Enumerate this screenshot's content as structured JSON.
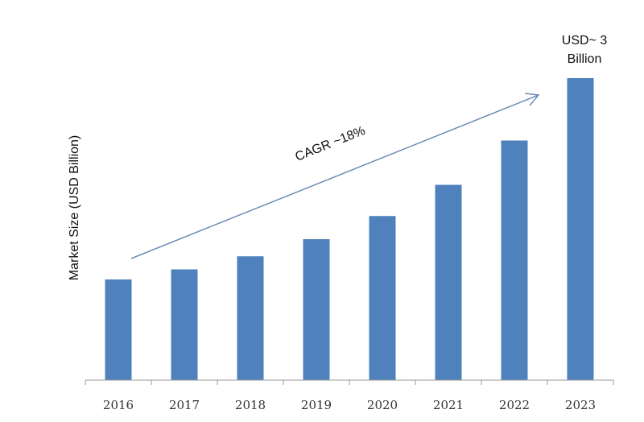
{
  "chart_data": {
    "type": "bar",
    "title": "",
    "xlabel": "",
    "ylabel": "Market Size (USD Billion)",
    "categories": [
      "2016",
      "2017",
      "2018",
      "2019",
      "2020",
      "2021",
      "2022",
      "2023"
    ],
    "values": [
      1.0,
      1.1,
      1.23,
      1.4,
      1.63,
      1.94,
      2.38,
      3.0
    ],
    "ylim": [
      0,
      3.4
    ],
    "grid": false,
    "bar_color": "#4f81bd",
    "annotations": {
      "cagr": "CAGR ~18%",
      "last_value_line1": "USD~ 3",
      "last_value_line2": "Billion"
    },
    "arrow_color": "#6f8db5"
  }
}
